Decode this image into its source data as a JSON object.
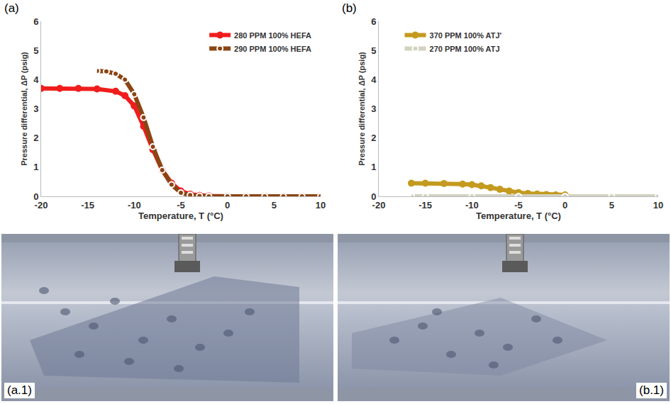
{
  "chart_data": [
    {
      "type": "line",
      "panel_label": "(a)",
      "x_label": "Temperature, T (°C)",
      "y_label": "Pressure differential, ΔP (psig)",
      "xlim": [
        -20,
        10
      ],
      "xticks": [
        -20,
        -15,
        -10,
        -5,
        0,
        5,
        10
      ],
      "ylim": [
        0,
        6
      ],
      "yticks": [
        0,
        1,
        2,
        3,
        4,
        5,
        6
      ],
      "grid": false,
      "legend": "upper right",
      "series": [
        {
          "name": "280 PPM 100% HEFA",
          "color": "#f01d1d",
          "marker": "circle",
          "x": [
            -20,
            -18,
            -16,
            -14,
            -12,
            -11,
            -10,
            -9,
            -8,
            -7,
            -6,
            -5,
            -4,
            -3,
            -2,
            0,
            2,
            4,
            6,
            8,
            10
          ],
          "values": [
            3.7,
            3.7,
            3.7,
            3.68,
            3.6,
            3.45,
            3.1,
            2.4,
            1.6,
            0.9,
            0.45,
            0.18,
            0.07,
            0.03,
            0.01,
            0,
            0,
            0,
            0,
            0,
            0
          ]
        },
        {
          "name": "290 PPM 100% HEFA",
          "color": "#8b4513",
          "marker": "circle-open",
          "x": [
            -14,
            -13,
            -12,
            -11,
            -10,
            -9,
            -8,
            -7,
            -6,
            -5,
            -4,
            -3,
            -2,
            0,
            2,
            4,
            6,
            8,
            10
          ],
          "values": [
            4.3,
            4.28,
            4.2,
            4.0,
            3.5,
            2.7,
            1.7,
            0.9,
            0.4,
            0.12,
            0.04,
            0.01,
            0,
            0,
            0,
            0,
            0,
            0,
            0
          ]
        }
      ]
    },
    {
      "type": "line",
      "panel_label": "(b)",
      "x_label": "Temperature, T (°C)",
      "y_label": "Pressure differential, ΔP (psig)",
      "xlim": [
        -20,
        10
      ],
      "xticks": [
        -20,
        -15,
        -10,
        -5,
        0,
        5,
        10
      ],
      "ylim": [
        0,
        6
      ],
      "yticks": [
        0,
        1,
        2,
        3,
        4,
        5,
        6
      ],
      "grid": false,
      "legend": "upper left",
      "series": [
        {
          "name": "370 PPM 100% ATJ'",
          "color": "#c49a1f",
          "marker": "circle",
          "x": [
            -16.5,
            -15,
            -13,
            -11,
            -10,
            -9,
            -8,
            -7,
            -6,
            -5,
            -4,
            -3,
            -2,
            -1,
            0
          ],
          "values": [
            0.45,
            0.45,
            0.44,
            0.42,
            0.4,
            0.36,
            0.3,
            0.24,
            0.18,
            0.13,
            0.1,
            0.08,
            0.06,
            0.05,
            0.05
          ]
        },
        {
          "name": "270 PPM 100% ATJ",
          "color": "#d2d2c0",
          "marker": "circle-open",
          "x": [
            -16.5,
            -15,
            -10,
            -5,
            0,
            5,
            10
          ],
          "values": [
            0,
            0,
            0,
            0,
            0,
            0,
            0
          ]
        }
      ]
    }
  ],
  "photos": [
    {
      "label": "(a.1)"
    },
    {
      "label": "(b.1)"
    }
  ]
}
